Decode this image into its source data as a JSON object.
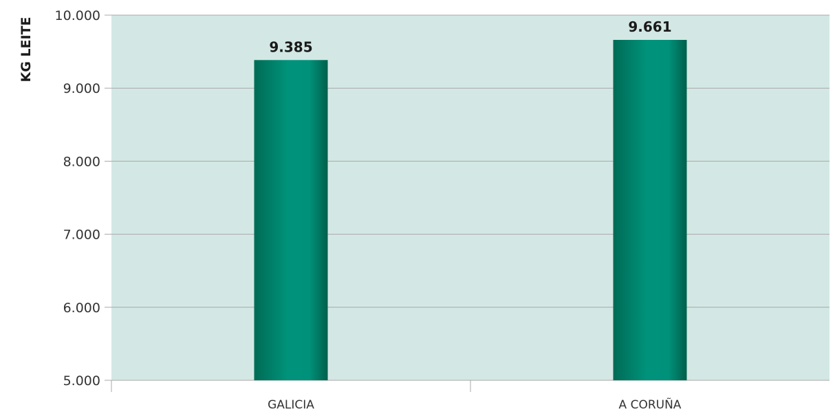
{
  "chart_data": {
    "type": "bar",
    "categories": [
      "GALICIA",
      "A CORUÑA"
    ],
    "values": [
      9385,
      9661
    ],
    "value_labels": [
      "9.385",
      "9.661"
    ],
    "ylabel": "KG LEITE",
    "xlabel": "",
    "title": "",
    "ylim": [
      5000,
      10000
    ],
    "yticks": [
      5000,
      6000,
      7000,
      8000,
      9000,
      10000
    ],
    "ytick_labels": [
      "5.000",
      "6.000",
      "7.000",
      "8.000",
      "9.000",
      "10.000"
    ],
    "grid": true,
    "legend": "none",
    "colors": {
      "plot_background": "#d3e8e4",
      "bar_dark": "#006b55",
      "bar_light": "#00927a",
      "gridline": "#a8a8a8"
    }
  }
}
